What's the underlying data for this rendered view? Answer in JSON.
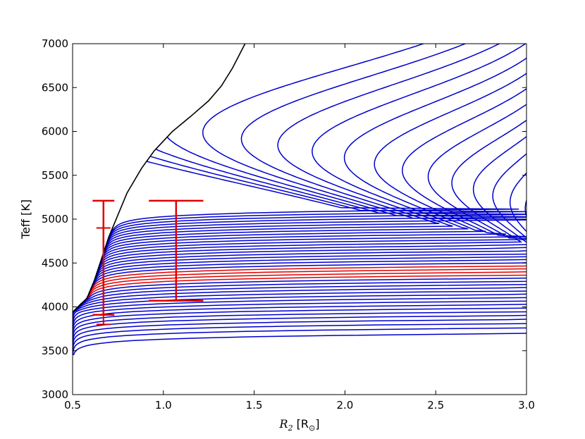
{
  "chart_data": {
    "type": "line",
    "title": "",
    "xlabel": {
      "symbol": "R",
      "subscript": "2",
      "unit": " [R",
      "unit_sub": "⊙",
      "unit_close": "]"
    },
    "ylabel": "Teff [K]",
    "xlim": [
      0.5,
      3.0
    ],
    "ylim": [
      3000,
      7000
    ],
    "xticks": [
      "0.5",
      "1.0",
      "1.5",
      "2.0",
      "2.5",
      "3.0"
    ],
    "yticks": [
      "3000",
      "3500",
      "4000",
      "4500",
      "5000",
      "5500",
      "6000",
      "6500",
      "7000"
    ],
    "grid": false,
    "legend": "none",
    "colors": {
      "contour": "#0000cc",
      "highlight": "#e00000",
      "boundary": "#000000",
      "errorbar": "#e00000"
    },
    "boundary": {
      "x": [
        0.5,
        0.58,
        0.62,
        0.66,
        0.7,
        0.75,
        0.8,
        0.88,
        0.95,
        1.05,
        1.15,
        1.25,
        1.32,
        1.38,
        1.42,
        1.45
      ],
      "y": [
        3940,
        4100,
        4300,
        4550,
        4800,
        5050,
        5300,
        5580,
        5780,
        6000,
        6170,
        6350,
        6520,
        6720,
        6880,
        7000
      ]
    },
    "contours": {
      "count": 40,
      "highlight_indices": [
        16,
        17,
        18,
        19
      ]
    },
    "error_bars": [
      {
        "x": 0.67,
        "y": 4560,
        "yerr_low": 650,
        "yerr_high": 650,
        "xerr": 0.06
      },
      {
        "x": 0.67,
        "y": 4350,
        "yerr_low": 550,
        "yerr_high": 550,
        "xerr": 0.0
      },
      {
        "x": 1.07,
        "y": 4640,
        "yerr_low": 570,
        "yerr_high": 570,
        "xerr": 0.15
      }
    ]
  }
}
